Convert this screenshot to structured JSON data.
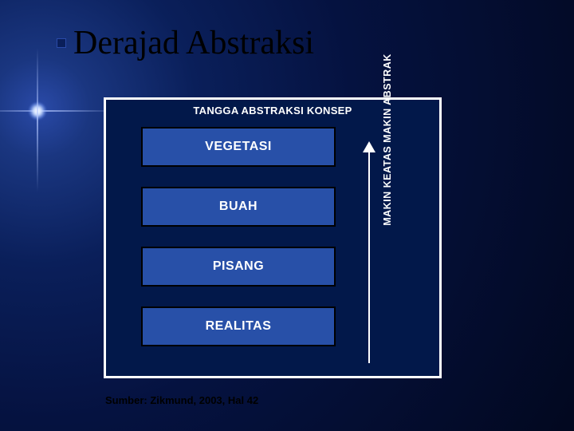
{
  "slide": {
    "title": "Derajad Abstraksi",
    "bullet_color": "#0a1f5a",
    "source": "Sumber: Zikmund, 2003, Hal 42"
  },
  "diagram": {
    "type": "infographic",
    "panel_title": "TANGGA ABSTRAKSI KONSEP",
    "panel_bg": "#02184a",
    "panel_border": "#ffffff",
    "box_border": "#000000",
    "box_text_color": "#ffffff",
    "box_fontsize": 16,
    "boxes": [
      {
        "label": "VEGETASI",
        "fill": "#2850a8"
      },
      {
        "label": "BUAH",
        "fill": "#2850a8"
      },
      {
        "label": "PISANG",
        "fill": "#2850a8"
      },
      {
        "label": "REALITAS",
        "fill": "#2850a8"
      }
    ],
    "arrow": {
      "color": "#ffffff",
      "label": "MAKIN KEATAS MAKIN ABSTRAK",
      "label_fontsize": 12.5,
      "direction": "up"
    }
  },
  "background": {
    "gradient_center": "#2a4aa8",
    "gradient_outer": "#02081f"
  }
}
